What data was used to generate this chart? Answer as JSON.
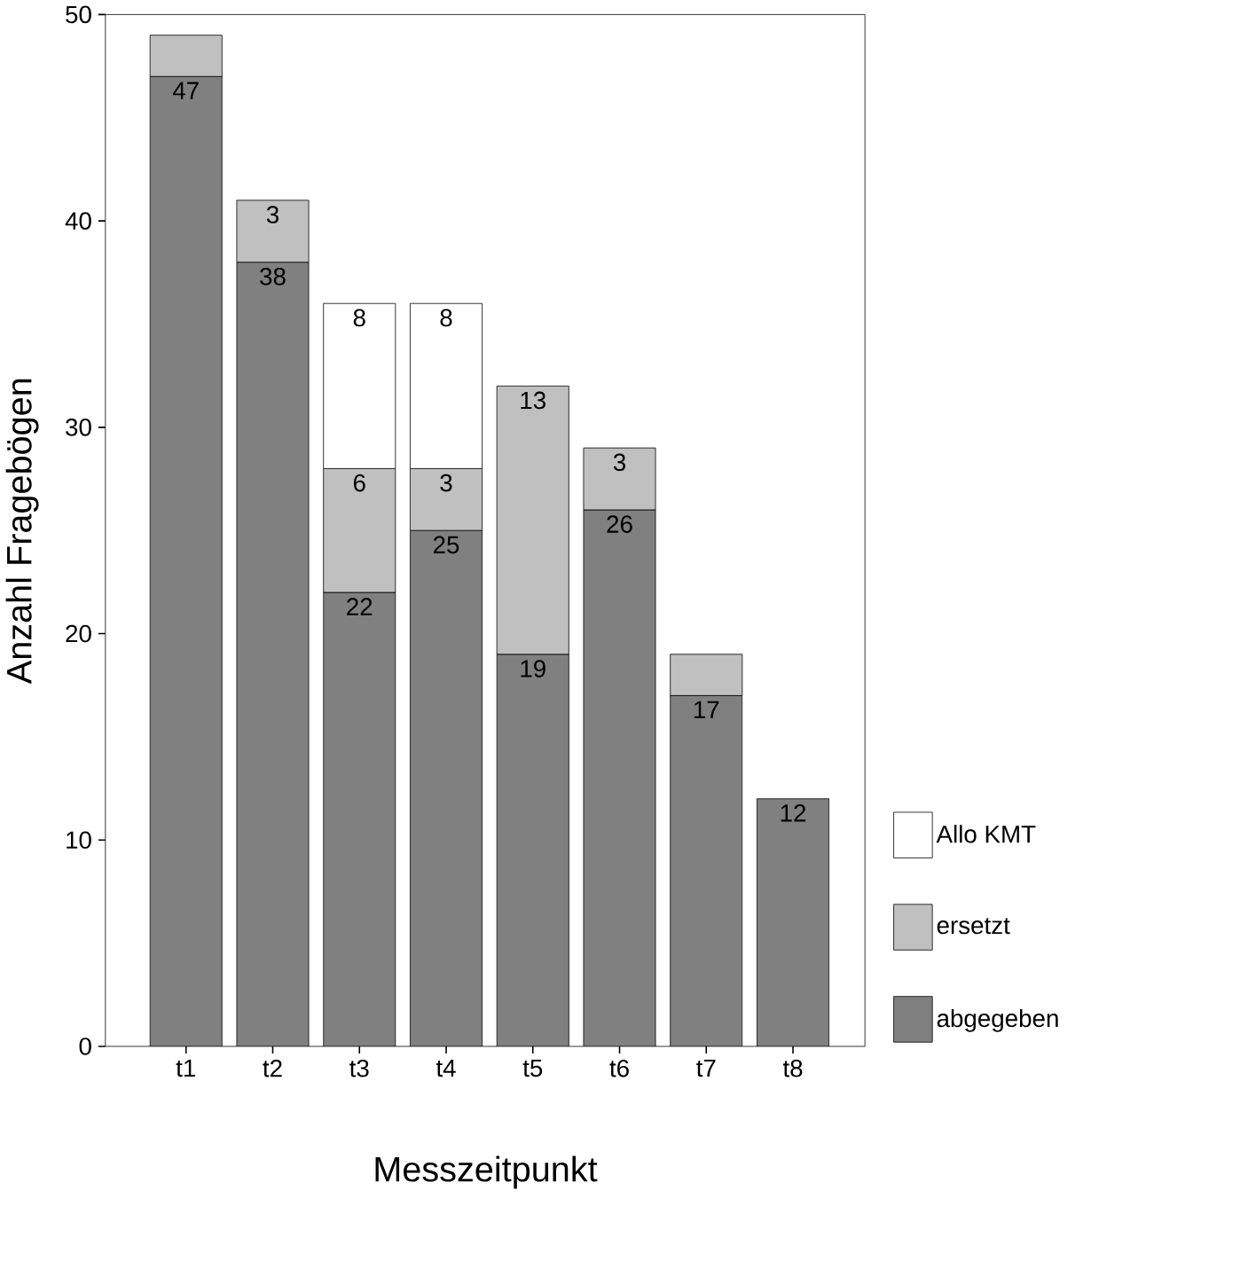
{
  "chart_data": {
    "type": "bar",
    "stacked": true,
    "xlabel": "Messzeitpunkt",
    "ylabel": "Anzahl Fragebögen",
    "categories": [
      "t1",
      "t2",
      "t3",
      "t4",
      "t5",
      "t6",
      "t7",
      "t8"
    ],
    "series": [
      {
        "name": "abgegeben",
        "color": "#808080",
        "values": [
          47,
          38,
          22,
          25,
          19,
          26,
          17,
          12
        ],
        "value_labels": [
          "47",
          "38",
          "22",
          "25",
          "19",
          "26",
          "17",
          "12"
        ]
      },
      {
        "name": "ersetzt",
        "color": "#c0c0c0",
        "values": [
          2,
          3,
          6,
          3,
          13,
          3,
          2,
          0
        ],
        "value_labels": [
          null,
          "3",
          "6",
          "3",
          "13",
          "3",
          null,
          null
        ]
      },
      {
        "name": "Allo KMT",
        "color": "#ffffff",
        "values": [
          0,
          0,
          8,
          8,
          0,
          0,
          0,
          0
        ],
        "value_labels": [
          null,
          null,
          "8",
          "8",
          null,
          null,
          null,
          null
        ]
      }
    ],
    "ylim": [
      0,
      50
    ],
    "yticks": [
      0,
      10,
      20,
      30,
      40,
      50
    ],
    "grid": false,
    "legend": "bottom right"
  }
}
